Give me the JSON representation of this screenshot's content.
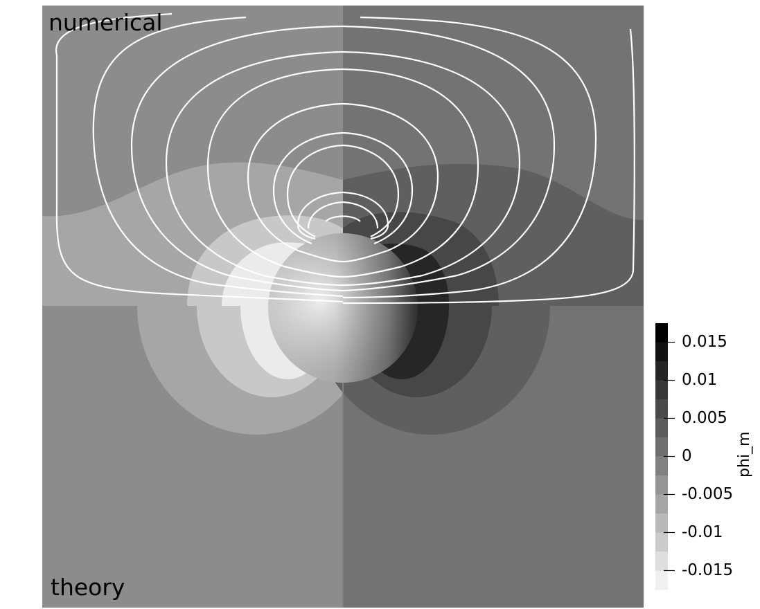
{
  "view": {
    "top_label": "numerical",
    "bottom_label": "theory"
  },
  "chart_data": {
    "type": "heatmap",
    "description_values": "contour field phi_m, dipole potential around a sphere, with field lines (upper half)",
    "colorbar": {
      "title": "phi_m",
      "min": -0.0175,
      "max": 0.0175,
      "levels": 14,
      "ticks": [
        0.015,
        0.01,
        0.005,
        0,
        -0.005,
        -0.01,
        -0.015
      ],
      "tick_labels": [
        "0.015",
        "0.01",
        "0.005",
        "0",
        "-0.005",
        "-0.01",
        "-0.015"
      ]
    },
    "colors": {
      "high": "#000000",
      "low": "#f0f0f0",
      "field_lines": "#ffffff"
    }
  }
}
